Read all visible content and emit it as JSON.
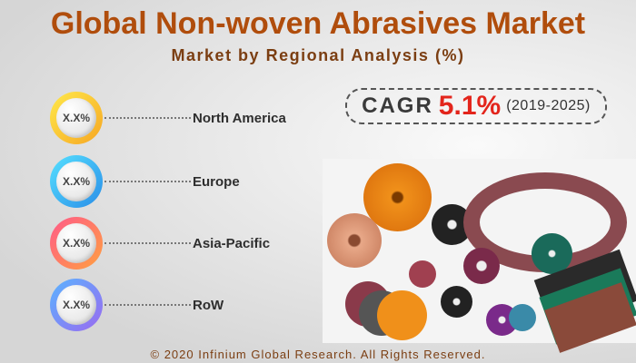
{
  "header": {
    "title": "Global Non-woven Abrasives Market",
    "subtitle": "Market by Regional Analysis (%)"
  },
  "cagr": {
    "label": "CAGR",
    "value": "5.1%",
    "period": "(2019-2025)"
  },
  "regions": [
    {
      "name": "North America",
      "value": "X.X%",
      "color": "#f7c531"
    },
    {
      "name": "Europe",
      "value": "X.X%",
      "color": "#3cc8f0"
    },
    {
      "name": "Asia-Pacific",
      "value": "X.X%",
      "color": "#f06a6a"
    },
    {
      "name": "RoW",
      "value": "X.X%",
      "color": "#6a8ff0"
    }
  ],
  "footer": {
    "copyright": "© 2020 Infinium Global Research. All Rights Reserved."
  }
}
